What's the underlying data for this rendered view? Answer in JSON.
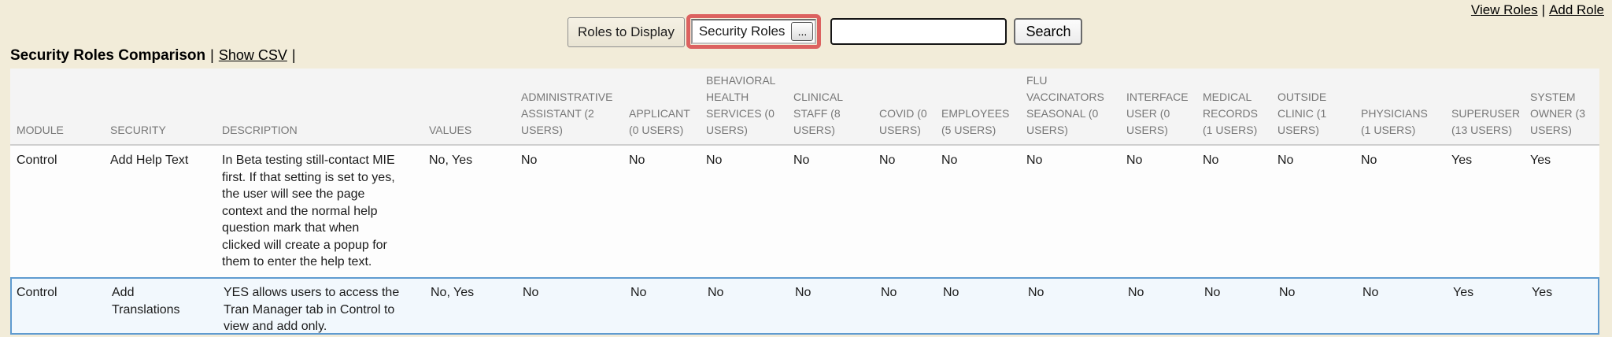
{
  "colors": {
    "page_bg": "#f2ecd9",
    "attention_highlight_red": "#dc6260",
    "table_header_bg": "#f4f4f4",
    "row_highlight_bg": "#f2f8fd",
    "row_highlight_border": "#5f9bd0"
  },
  "top_links": {
    "view_roles": "View Roles",
    "separator": "|",
    "add_role": "Add Role"
  },
  "toolbar": {
    "roles_to_display_label": "Roles to Display",
    "roles_filter_value": "Security Roles",
    "ellipsis_button": "...",
    "search_value": "",
    "search_button": "Search"
  },
  "heading": {
    "title": "Security Roles Comparison",
    "separator": "|",
    "show_csv": "Show CSV",
    "trailing_separator": "|"
  },
  "table": {
    "columns": [
      {
        "label": "MODULE"
      },
      {
        "label": "SECURITY"
      },
      {
        "label": "DESCRIPTION"
      },
      {
        "label": "VALUES"
      },
      {
        "label": "ADMINISTRATIVE ASSISTANT (2 USERS)"
      },
      {
        "label": "APPLICANT (0 USERS)"
      },
      {
        "label": "BEHAVIORAL HEALTH SERVICES (0 USERS)"
      },
      {
        "label": "CLINICAL STAFF (8 USERS)"
      },
      {
        "label": "COVID (0 USERS)"
      },
      {
        "label": "EMPLOYEES (5 USERS)"
      },
      {
        "label": "FLU VACCINATORS SEASONAL (0 USERS)"
      },
      {
        "label": "INTERFACE USER (0 USERS)"
      },
      {
        "label": "MEDICAL RECORDS (1 USERS)"
      },
      {
        "label": "OUTSIDE CLINIC (1 USERS)"
      },
      {
        "label": "PHYSICIANS (1 USERS)"
      },
      {
        "label": "SUPERUSER (13 USERS)"
      },
      {
        "label": "SYSTEM OWNER (3 USERS)"
      }
    ],
    "rows": [
      {
        "module": "Control",
        "security": "Add Help Text",
        "description": "In Beta testing still-contact MIE first. If that setting is set to yes, the user will see the page context and the normal help question mark that when clicked will create a popup for them to enter the help text.",
        "values": "No, Yes",
        "roles": [
          "No",
          "No",
          "No",
          "No",
          "No",
          "No",
          "No",
          "No",
          "No",
          "No",
          "No",
          "Yes",
          "Yes"
        ]
      },
      {
        "module": "Control",
        "security": "Add Translations",
        "description": "YES allows users to access the Tran Manager tab in Control to view and add only.",
        "values": "No, Yes",
        "roles": [
          "No",
          "No",
          "No",
          "No",
          "No",
          "No",
          "No",
          "No",
          "No",
          "No",
          "No",
          "Yes",
          "Yes"
        ]
      }
    ]
  }
}
